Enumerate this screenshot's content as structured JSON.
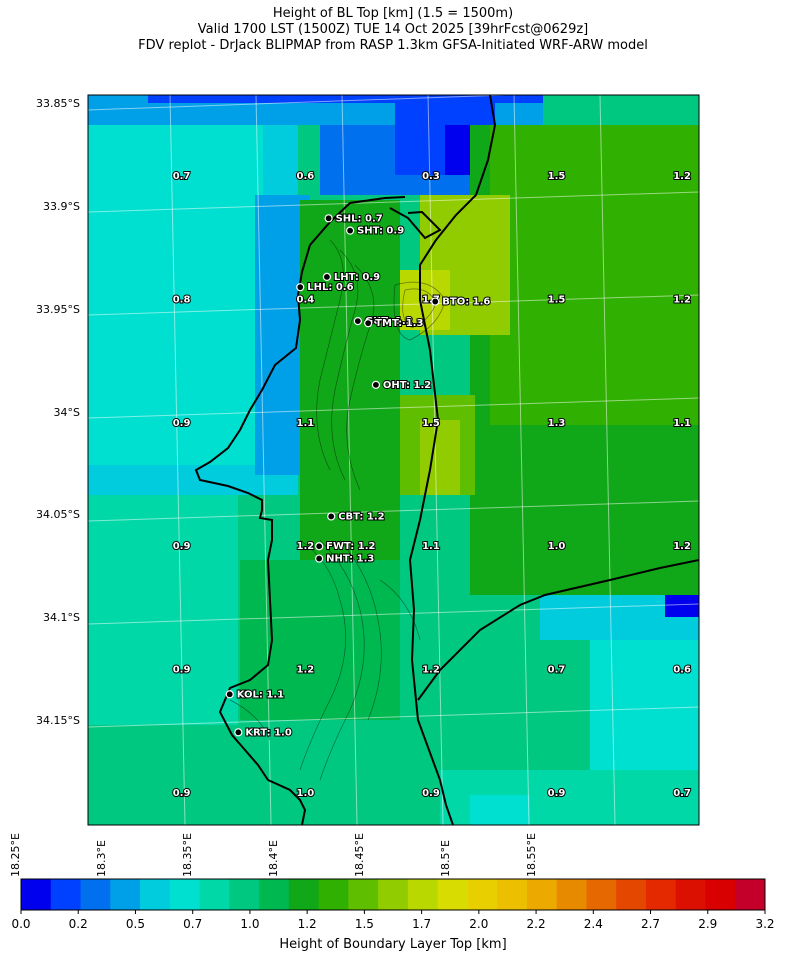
{
  "title": {
    "line1": "Height of BL Top [km] (1.5 = 1500m)",
    "line2": "Valid 1700 LST (1500Z) TUE 14 Oct 2025 [39hrFcst@0629z]",
    "line3": "FDV replot - DrJack BLIPMAP from RASP 1.3km GFSA-Initiated WRF-ARW model"
  },
  "map": {
    "lat_labels": [
      {
        "lat": -33.85,
        "text": "33.85°S"
      },
      {
        "lat": -33.9,
        "text": "33.9°S"
      },
      {
        "lat": -33.95,
        "text": "33.95°S"
      },
      {
        "lat": -34.0,
        "text": "34°S"
      },
      {
        "lat": -34.05,
        "text": "34.05°S"
      },
      {
        "lat": -34.1,
        "text": "34.1°S"
      },
      {
        "lat": -34.15,
        "text": "34.15°S"
      }
    ],
    "lon_labels": [
      {
        "lon": 18.25,
        "text": "18.25°E"
      },
      {
        "lon": 18.3,
        "text": "18.3°E"
      },
      {
        "lon": 18.35,
        "text": "18.35°E"
      },
      {
        "lon": 18.4,
        "text": "18.4°E"
      },
      {
        "lon": 18.45,
        "text": "18.45°E"
      },
      {
        "lon": 18.5,
        "text": "18.5°E"
      },
      {
        "lon": 18.55,
        "text": "18.55°E"
      }
    ],
    "grid_values": [
      {
        "lat": -33.885,
        "lon": 18.298,
        "text": "0.7"
      },
      {
        "lat": -33.885,
        "lon": 18.37,
        "text": "0.6"
      },
      {
        "lat": -33.885,
        "lon": 18.443,
        "text": "0.3"
      },
      {
        "lat": -33.885,
        "lon": 18.516,
        "text": "1.5"
      },
      {
        "lat": -33.885,
        "lon": 18.589,
        "text": "1.2"
      },
      {
        "lat": -33.945,
        "lon": 18.298,
        "text": "0.8"
      },
      {
        "lat": -33.945,
        "lon": 18.37,
        "text": "0.4"
      },
      {
        "lat": -33.945,
        "lon": 18.443,
        "text": "1.7"
      },
      {
        "lat": -33.945,
        "lon": 18.516,
        "text": "1.5"
      },
      {
        "lat": -33.945,
        "lon": 18.589,
        "text": "1.2"
      },
      {
        "lat": -34.005,
        "lon": 18.298,
        "text": "0.9"
      },
      {
        "lat": -34.005,
        "lon": 18.37,
        "text": "1.1"
      },
      {
        "lat": -34.005,
        "lon": 18.443,
        "text": "1.5"
      },
      {
        "lat": -34.005,
        "lon": 18.516,
        "text": "1.3"
      },
      {
        "lat": -34.005,
        "lon": 18.589,
        "text": "1.1"
      },
      {
        "lat": -34.065,
        "lon": 18.298,
        "text": "0.9"
      },
      {
        "lat": -34.065,
        "lon": 18.37,
        "text": "1.2"
      },
      {
        "lat": -34.065,
        "lon": 18.443,
        "text": "1.1"
      },
      {
        "lat": -34.065,
        "lon": 18.516,
        "text": "1.0"
      },
      {
        "lat": -34.065,
        "lon": 18.589,
        "text": "1.2"
      },
      {
        "lat": -34.125,
        "lon": 18.298,
        "text": "0.9"
      },
      {
        "lat": -34.125,
        "lon": 18.37,
        "text": "1.2"
      },
      {
        "lat": -34.125,
        "lon": 18.443,
        "text": "1.2"
      },
      {
        "lat": -34.125,
        "lon": 18.516,
        "text": "0.7"
      },
      {
        "lat": -34.125,
        "lon": 18.589,
        "text": "0.6"
      },
      {
        "lat": -34.185,
        "lon": 18.298,
        "text": "0.9"
      },
      {
        "lat": -34.185,
        "lon": 18.37,
        "text": "1.0"
      },
      {
        "lat": -34.185,
        "lon": 18.443,
        "text": "0.9"
      },
      {
        "lat": -34.185,
        "lon": 18.516,
        "text": "0.9"
      },
      {
        "lat": -34.185,
        "lon": 18.589,
        "text": "0.7"
      }
    ],
    "stations": [
      {
        "name": "SHL",
        "label": "SHL: 0.7",
        "lat": -33.9055,
        "lon": 18.3835
      },
      {
        "name": "SHT",
        "label": "SHT: 0.9",
        "lat": -33.9115,
        "lon": 18.396
      },
      {
        "name": "LHT",
        "label": "LHT: 0.9",
        "lat": -33.934,
        "lon": 18.3825
      },
      {
        "name": "LHL",
        "label": "LHL: 0.6",
        "lat": -33.939,
        "lon": 18.367
      },
      {
        "name": "GUT",
        "label": "GUT: 1.2",
        "lat": -33.9555,
        "lon": 18.4005
      },
      {
        "name": "BTO",
        "label": "BTO: 1.6",
        "lat": -33.946,
        "lon": 18.4455
      },
      {
        "name": "TMT",
        "label": "TMT: 1.3",
        "lat": -33.9565,
        "lon": 18.4065
      },
      {
        "name": "OHT",
        "label": "OHT: 1.2",
        "lat": -33.9865,
        "lon": 18.411
      },
      {
        "name": "CBT",
        "label": "CBT: 1.2",
        "lat": -34.0505,
        "lon": 18.385
      },
      {
        "name": "FWT",
        "label": "FWT: 1.2",
        "lat": -34.065,
        "lon": 18.378
      },
      {
        "name": "NHT",
        "label": "NHT: 1.3",
        "lat": -34.071,
        "lon": 18.378
      },
      {
        "name": "KOL",
        "label": "KOL: 1.1",
        "lat": -34.137,
        "lon": 18.326
      },
      {
        "name": "KRT",
        "label": "KRT: 1.0",
        "lat": -34.1555,
        "lon": 18.331
      }
    ]
  },
  "colorbar": {
    "title": "Height of Boundary Layer Top [km]",
    "ticks": [
      "0.0",
      "0.2",
      "0.5",
      "0.7",
      "1.0",
      "1.2",
      "1.5",
      "1.7",
      "2.0",
      "2.2",
      "2.4",
      "2.7",
      "2.9",
      "3.2"
    ],
    "colors": [
      "#0000ee",
      "#0040ff",
      "#0070ee",
      "#00a0e8",
      "#00ccde",
      "#00e0d0",
      "#00d8a8",
      "#00c880",
      "#00b850",
      "#10a818",
      "#30b000",
      "#60be00",
      "#90cc00",
      "#b8d800",
      "#d8dc00",
      "#e8d000",
      "#ecc000",
      "#ecaa00",
      "#e88a00",
      "#e66800",
      "#e44800",
      "#e42800",
      "#dc1000",
      "#d80000",
      "#c4002a"
    ]
  }
}
